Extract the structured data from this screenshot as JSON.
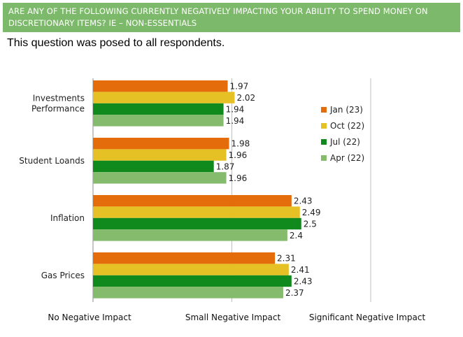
{
  "header": {
    "title": "ARE ANY OF THE FOLLOWING CURRENTLY NEGATIVELY IMPACTING YOUR ABILITY TO SPEND MONEY ON DISCRETIONARY ITEMS? IE – NON-ESSENTIALS"
  },
  "subtitle": "This question was posed to all respondents.",
  "colors": {
    "header_bg": "#7db96a",
    "Jan (23)": "#e46c0a",
    "Oct (22)": "#e6c126",
    "Jul (22)": "#108a1c",
    "Apr (22)": "#84bb6c"
  },
  "chart_data": {
    "type": "bar",
    "orientation": "horizontal",
    "categories": [
      "Investments Performance",
      "Student Loands",
      "Inflation",
      "Gas Prices"
    ],
    "category_lines": [
      [
        "Investments",
        "Performance"
      ],
      [
        "Student Loands"
      ],
      [
        "Inflation"
      ],
      [
        "Gas Prices"
      ]
    ],
    "series": [
      {
        "name": "Jan (23)",
        "values": [
          1.97,
          1.98,
          2.43,
          2.31
        ]
      },
      {
        "name": "Oct (22)",
        "values": [
          2.02,
          1.96,
          2.49,
          2.41
        ]
      },
      {
        "name": "Jul (22)",
        "values": [
          1.94,
          1.87,
          2.5,
          2.43
        ]
      },
      {
        "name": "Apr (22)",
        "values": [
          1.94,
          1.96,
          2.4,
          2.37
        ]
      }
    ],
    "value_labels": [
      [
        "1.97",
        "1.98",
        "2.43",
        "2.31"
      ],
      [
        "2.02",
        "1.96",
        "2.49",
        "2.41"
      ],
      [
        "1.94",
        "1.87",
        "2.5",
        "2.43"
      ],
      [
        "1.94",
        "1.96",
        "2.4",
        "2.37"
      ]
    ],
    "x_ticks": [
      {
        "value": 1,
        "label": "No Negative Impact"
      },
      {
        "value": 2,
        "label": "Small Negative Impact"
      },
      {
        "value": 3,
        "label": "Significant Negative Impact"
      }
    ],
    "xlim": [
      1,
      3
    ],
    "grid": true,
    "legend": "right"
  }
}
